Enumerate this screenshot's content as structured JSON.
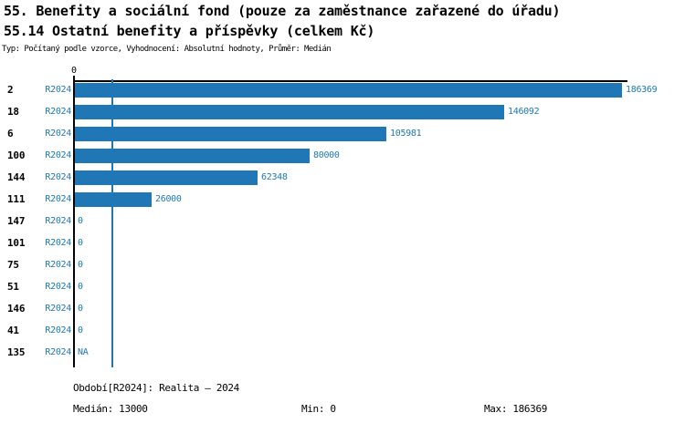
{
  "header": {
    "title_line1": "55. Benefity a sociální fond (pouze za zaměstnance zařazené do úřadu)",
    "title_line2": "55.14 Ostatní benefity a příspěvky (celkem Kč)",
    "meta_line": "Typ: Počítaný podle vzorce, Vyhodnocení: Absolutní hodnoty, Průměr: Medián"
  },
  "chart_data": {
    "type": "bar",
    "orientation": "horizontal",
    "title": "55.14 Ostatní benefity a příspěvky (celkem Kč)",
    "series_label": "R2024",
    "categories": [
      "2",
      "18",
      "6",
      "100",
      "144",
      "111",
      "147",
      "101",
      "75",
      "51",
      "146",
      "41",
      "135"
    ],
    "values": [
      186369,
      146092,
      105981,
      80000,
      62348,
      26000,
      0,
      0,
      0,
      0,
      0,
      0,
      null
    ],
    "value_labels": [
      "186369",
      "146092",
      "105981",
      "80000",
      "62348",
      "26000",
      "0",
      "0",
      "0",
      "0",
      "0",
      "0",
      "NA"
    ],
    "xlim": [
      0,
      186369
    ],
    "x_tick_labels": [
      "0"
    ],
    "median_value": 13000,
    "grid": false,
    "legend_position": "none",
    "bar_color": "#2077b5",
    "accent_color": "#1f77b4",
    "axis_color": "#000000"
  },
  "footer": {
    "period": "Období[R2024]: Realita – 2024",
    "median": "Medián: 13000",
    "min": "Min: 0",
    "max": "Max: 186369"
  }
}
